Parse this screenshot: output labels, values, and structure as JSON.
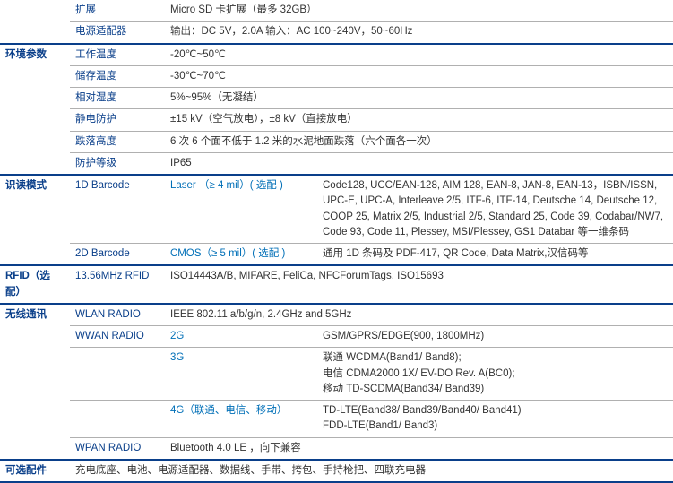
{
  "rows": [
    {
      "group": "",
      "label": "扩展",
      "mid": "",
      "val": "Micro SD 卡扩展（最多 32GB）",
      "heavy": false
    },
    {
      "group": "",
      "label": "电源适配器",
      "mid": "",
      "val": "输出：DC 5V，2.0A 输入：AC 100~240V，50~60Hz",
      "heavy": true
    },
    {
      "group": "环境参数",
      "label": "工作温度",
      "mid": "",
      "val": "-20℃~50℃",
      "heavy": false
    },
    {
      "group": "",
      "label": "储存温度",
      "mid": "",
      "val": "-30℃~70℃",
      "heavy": false
    },
    {
      "group": "",
      "label": "相对湿度",
      "mid": "",
      "val": "5%~95%（无凝结）",
      "heavy": false
    },
    {
      "group": "",
      "label": "静电防护",
      "mid": "",
      "val": "±15 kV（空气放电），±8 kV（直接放电）",
      "heavy": false
    },
    {
      "group": "",
      "label": "跌落高度",
      "mid": "",
      "val": "6 次 6 个面不低于 1.2 米的水泥地面跌落（六个面各一次）",
      "heavy": false
    },
    {
      "group": "",
      "label": "防护等级",
      "mid": "",
      "val": "IP65",
      "heavy": true
    },
    {
      "group": "识读模式",
      "label": "1D Barcode",
      "mid": "Laser （≥ 4 mil）( 选配 )",
      "val": "Code128, UCC/EAN-128, AIM 128, EAN-8, JAN-8, EAN-13，ISBN/ISSN, UPC-E, UPC-A, Interleave 2/5, ITF-6, ITF-14, Deutsche 14, Deutsche 12, COOP 25, Matrix 2/5, Industrial 2/5, Standard 25, Code 39, Codabar/NW7, Code 93, Code 11, Plessey, MSI/Plessey, GS1 Databar 等一维条码",
      "heavy": false
    },
    {
      "group": "",
      "label": "2D Barcode",
      "mid": "CMOS（≥ 5 mil）( 选配 )",
      "val": "通用 1D 条码及 PDF-417, QR Code, Data Matrix,汉信码等",
      "heavy": true
    },
    {
      "group": "RFID（选配）",
      "label": "13.56MHz RFID",
      "mid": "",
      "val": "ISO14443A/B, MIFARE, FeliCa, NFCForumTags, ISO15693",
      "heavy": true
    },
    {
      "group": "无线通讯",
      "label": "WLAN RADIO",
      "mid": "",
      "val": "IEEE 802.11 a/b/g/n, 2.4GHz and 5GHz",
      "heavy": false
    },
    {
      "group": "",
      "label": "WWAN RADIO",
      "mid": "2G",
      "val": "GSM/GPRS/EDGE(900, 1800MHz)",
      "heavy": false
    },
    {
      "group": "",
      "label": "",
      "mid": "3G",
      "val": "联通 WCDMA(Band1/ Band8);\n电信 CDMA2000 1X/ EV-DO Rev. A(BC0);\n移动 TD-SCDMA(Band34/ Band39)",
      "heavy": false
    },
    {
      "group": "",
      "label": "",
      "mid": "4G（联通、电信、移动）",
      "val": "TD-LTE(Band38/ Band39/Band40/ Band41)\nFDD-LTE(Band1/ Band3)",
      "heavy": false
    },
    {
      "group": "",
      "label": "WPAN RADIO",
      "mid": "",
      "val": "Bluetooth 4.0 LE ，向下兼容",
      "heavy": true
    },
    {
      "group": "可选配件",
      "label": "",
      "mid": "",
      "val": "充电底座、电池、电源适配器、数据线、手带、挎包、手持枪把、四联充电器",
      "heavy": true,
      "span": true,
      "nobottom": true
    }
  ]
}
